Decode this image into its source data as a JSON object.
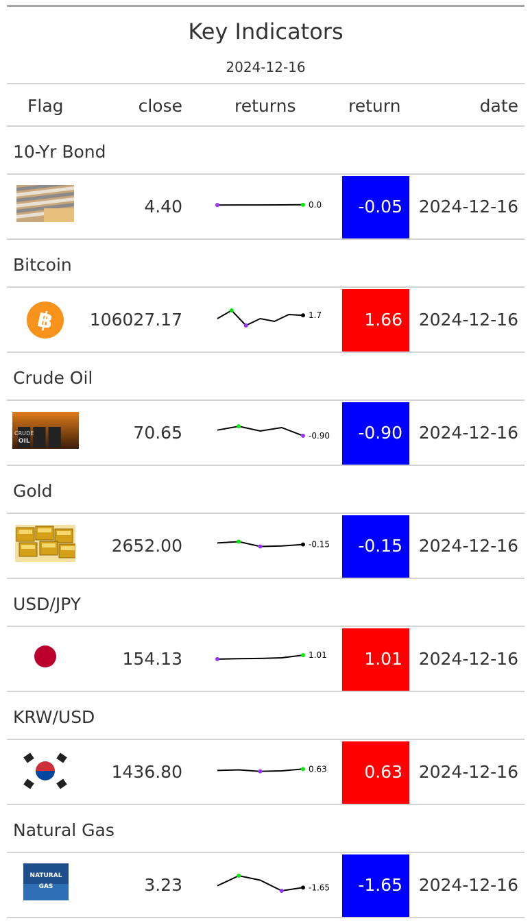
{
  "title": "Key Indicators",
  "subtitle": "2024-12-16",
  "columns": [
    "Flag",
    "close",
    "returns",
    "return",
    "date"
  ],
  "colors": {
    "positive": "#ff0000",
    "negative": "#0000ff",
    "spark_max": "#00ee00",
    "spark_min": "#9b30ff",
    "spark_last": "#000000"
  },
  "rows": [
    {
      "group": "10-Yr Bond",
      "flag_icon": "bond-icon",
      "close": "4.40",
      "spark_label": "0.0",
      "spark": [
        4.35,
        4.36,
        4.36,
        4.37,
        4.4
      ],
      "spark_markers": [
        "max",
        "min"
      ],
      "return": "-0.05",
      "direction": "negative",
      "date": "2024-12-16"
    },
    {
      "group": "Bitcoin",
      "flag_icon": "bitcoin-icon",
      "close": "106027.17",
      "spark_label": "1.7",
      "spark": [
        0.5,
        3.5,
        -2.0,
        0.5,
        -0.5,
        2.0,
        1.7
      ],
      "spark_markers": [
        "max",
        "min"
      ],
      "return": "1.66",
      "direction": "positive",
      "date": "2024-12-16"
    },
    {
      "group": "Crude Oil",
      "flag_icon": "crude-oil-icon",
      "close": "70.65",
      "spark_label": "-0.90",
      "spark": [
        0.4,
        1.3,
        0.2,
        1.0,
        -0.9
      ],
      "spark_markers": [
        "max",
        "min"
      ],
      "return": "-0.90",
      "direction": "negative",
      "date": "2024-12-16"
    },
    {
      "group": "Gold",
      "flag_icon": "gold-icon",
      "close": "2652.00",
      "spark_label": "-0.15",
      "spark": [
        0.2,
        0.5,
        -0.6,
        -0.5,
        -0.15
      ],
      "spark_markers": [
        "max",
        "min",
        "last"
      ],
      "return": "-0.15",
      "direction": "negative",
      "date": "2024-12-16"
    },
    {
      "group": "USD/JPY",
      "flag_icon": "japan-flag-icon",
      "close": "154.13",
      "spark_label": "1.01",
      "spark": [
        0.1,
        0.2,
        0.25,
        0.4,
        1.01
      ],
      "spark_markers": [
        "min",
        "max"
      ],
      "return": "1.01",
      "direction": "positive",
      "date": "2024-12-16"
    },
    {
      "group": "KRW/USD",
      "flag_icon": "korea-flag-icon",
      "close": "1436.80",
      "spark_label": "0.63",
      "spark": [
        0.3,
        0.45,
        0.1,
        0.2,
        0.63
      ],
      "spark_markers": [
        "min",
        "max"
      ],
      "return": "0.63",
      "direction": "positive",
      "date": "2024-12-16"
    },
    {
      "group": "Natural Gas",
      "flag_icon": "natural-gas-icon",
      "close": "3.23",
      "spark_label": "-1.65",
      "spark": [
        -1.0,
        2.6,
        1.0,
        -2.8,
        -1.65
      ],
      "spark_markers": [
        "max",
        "min",
        "last"
      ],
      "return": "-1.65",
      "direction": "negative",
      "date": "2024-12-16"
    }
  ],
  "natural_gas_text": [
    "NATURAL",
    "GAS"
  ],
  "crude_oil_text": [
    "CRUDE",
    "OIL"
  ]
}
